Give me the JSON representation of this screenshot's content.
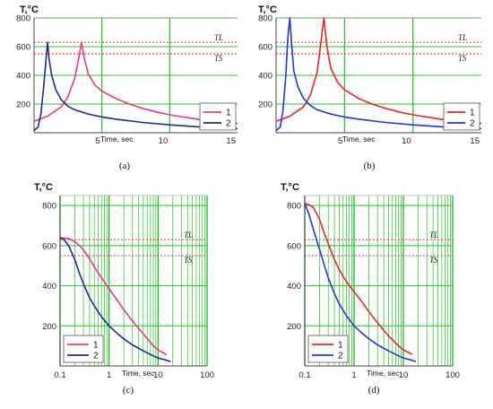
{
  "chart_data": [
    {
      "id": "a",
      "type": "line",
      "caption": "(a)",
      "ylabel": "T,°C",
      "xlabel": "Time, sec",
      "xscale": "linear",
      "xlim": [
        0,
        15
      ],
      "ylim": [
        0,
        800
      ],
      "xticks": [
        "5",
        "10",
        "15"
      ],
      "yticks": [
        "200",
        "400",
        "600",
        "800"
      ],
      "ref_lines": [
        {
          "label": "TL",
          "value": 630
        },
        {
          "label": "TS",
          "value": 550
        }
      ],
      "grid": true,
      "legend": "bottom-right",
      "series": [
        {
          "name": "1",
          "color": "#e8398c",
          "x": [
            0,
            1,
            2,
            2.5,
            3,
            3.3,
            3.5,
            3.7,
            4,
            4.5,
            5,
            6,
            7,
            8,
            9,
            10,
            11,
            12,
            13,
            14,
            15
          ],
          "y": [
            80,
            115,
            180,
            250,
            380,
            520,
            630,
            520,
            410,
            330,
            290,
            240,
            200,
            170,
            145,
            125,
            110,
            95,
            82,
            72,
            65
          ]
        },
        {
          "name": "2",
          "color": "#1f2a8f",
          "x": [
            0,
            0.3,
            0.5,
            0.7,
            0.9,
            1.0,
            1.1,
            1.3,
            1.6,
            2,
            2.5,
            3,
            4,
            5,
            6,
            8,
            10,
            12,
            15
          ],
          "y": [
            15,
            40,
            130,
            310,
            530,
            630,
            520,
            400,
            300,
            230,
            185,
            160,
            130,
            110,
            95,
            72,
            55,
            42,
            28
          ]
        }
      ]
    },
    {
      "id": "b",
      "type": "line",
      "caption": "(b)",
      "ylabel": "T,°C",
      "xlabel": "Time, sec",
      "xscale": "linear",
      "xlim": [
        0,
        15
      ],
      "ylim": [
        0,
        800
      ],
      "xticks": [
        "5",
        "10",
        "15"
      ],
      "yticks": [
        "200",
        "400",
        "600",
        "800"
      ],
      "ref_lines": [
        {
          "label": "TL",
          "value": 630
        },
        {
          "label": "TS",
          "value": 550
        }
      ],
      "grid": true,
      "legend": "bottom-right",
      "series": [
        {
          "name": "1",
          "color": "#e8262b",
          "x": [
            0,
            1,
            2,
            2.5,
            3,
            3.3,
            3.5,
            3.7,
            4,
            4.5,
            5,
            6,
            7,
            8,
            9,
            10,
            11,
            12,
            13,
            14,
            15
          ],
          "y": [
            80,
            115,
            180,
            260,
            420,
            650,
            800,
            610,
            450,
            350,
            300,
            240,
            200,
            170,
            145,
            125,
            110,
            95,
            82,
            72,
            65
          ]
        },
        {
          "name": "2",
          "color": "#2236d8",
          "x": [
            0,
            0.3,
            0.5,
            0.7,
            0.85,
            1.0,
            1.15,
            1.3,
            1.6,
            2,
            2.5,
            3,
            4,
            5,
            6,
            8,
            10,
            12,
            15
          ],
          "y": [
            15,
            40,
            150,
            380,
            650,
            800,
            600,
            430,
            320,
            240,
            190,
            160,
            130,
            110,
            95,
            72,
            55,
            42,
            28
          ]
        }
      ]
    },
    {
      "id": "c",
      "type": "line",
      "caption": "(c)",
      "ylabel": "T,°C",
      "xlabel": "Time, sec",
      "xscale": "log",
      "xlim": [
        0.1,
        100
      ],
      "ylim": [
        0,
        850
      ],
      "xticks": [
        "0.1",
        "1",
        "10",
        "100"
      ],
      "yticks": [
        "200",
        "400",
        "600",
        "800"
      ],
      "ref_lines": [
        {
          "label": "TL",
          "value": 630
        },
        {
          "label": "TS",
          "value": 550
        }
      ],
      "grid": true,
      "legend": "bottom-left",
      "series": [
        {
          "name": "1",
          "color": "#e8398c",
          "x": [
            0.1,
            0.15,
            0.2,
            0.25,
            0.3,
            0.4,
            0.5,
            0.7,
            1,
            1.5,
            2,
            3,
            5,
            8,
            10,
            15
          ],
          "y": [
            640,
            635,
            620,
            600,
            580,
            535,
            495,
            440,
            385,
            325,
            280,
            225,
            160,
            100,
            80,
            55
          ]
        },
        {
          "name": "2",
          "color": "#1f2a8f",
          "x": [
            0.1,
            0.12,
            0.15,
            0.2,
            0.25,
            0.3,
            0.4,
            0.5,
            0.7,
            1,
            1.5,
            2,
            3,
            5,
            8,
            10,
            15,
            18
          ],
          "y": [
            640,
            630,
            600,
            530,
            460,
            410,
            340,
            300,
            245,
            200,
            160,
            135,
            105,
            75,
            50,
            40,
            28,
            22
          ]
        }
      ]
    },
    {
      "id": "d",
      "type": "line",
      "caption": "(d)",
      "ylabel": "T,°C",
      "xlabel": "Time, sec",
      "xscale": "log",
      "xlim": [
        0.1,
        100
      ],
      "ylim": [
        0,
        850
      ],
      "xticks": [
        "0.1",
        "1",
        "10",
        "100"
      ],
      "yticks": [
        "200",
        "400",
        "600",
        "800"
      ],
      "ref_lines": [
        {
          "label": "TL",
          "value": 630
        },
        {
          "label": "TS",
          "value": 550
        }
      ],
      "grid": true,
      "legend": "bottom-left",
      "series": [
        {
          "name": "1",
          "color": "#e8262b",
          "x": [
            0.1,
            0.12,
            0.15,
            0.2,
            0.25,
            0.3,
            0.4,
            0.5,
            0.7,
            1,
            1.5,
            2,
            3,
            5,
            8,
            10,
            15
          ],
          "y": [
            810,
            805,
            790,
            730,
            660,
            610,
            530,
            480,
            420,
            370,
            315,
            270,
            215,
            150,
            100,
            80,
            58
          ]
        },
        {
          "name": "2",
          "color": "#2236d8",
          "x": [
            0.1,
            0.12,
            0.15,
            0.2,
            0.25,
            0.3,
            0.4,
            0.5,
            0.7,
            1,
            1.5,
            2,
            3,
            5,
            8,
            10,
            15,
            18
          ],
          "y": [
            810,
            760,
            680,
            580,
            500,
            440,
            360,
            310,
            250,
            200,
            160,
            135,
            105,
            75,
            50,
            40,
            28,
            22
          ]
        }
      ]
    }
  ]
}
